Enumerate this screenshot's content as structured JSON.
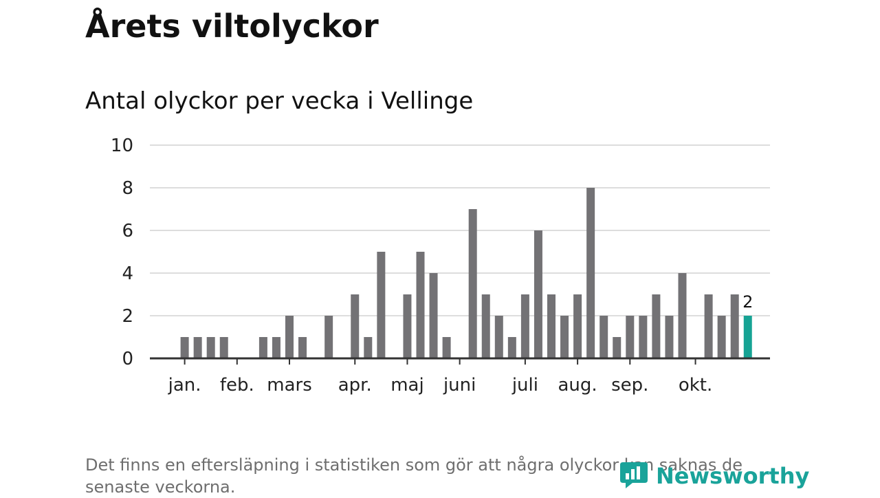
{
  "header": {
    "title": "Årets viltolyckor",
    "subtitle": "Antal olyckor per vecka i Vellinge"
  },
  "footer": {
    "note": "Det finns en eftersläpning i statistiken som gör att några olyckor kan saknas de senaste veckorna.",
    "brand": "Newsworthy",
    "brand_icon": "newsworthy-logo-icon"
  },
  "colors": {
    "bar": "#737275",
    "highlight": "#16a394",
    "grid": "#dddddd",
    "axis": "#333333"
  },
  "chart_data": {
    "type": "bar",
    "title": "Antal olyckor per vecka i Vellinge",
    "xlabel": "",
    "ylabel": "",
    "ylim": [
      0,
      10
    ],
    "yticks": [
      0,
      2,
      4,
      6,
      8,
      10
    ],
    "grid": true,
    "weeks": [
      1,
      2,
      3,
      4,
      5,
      6,
      7,
      8,
      9,
      10,
      11,
      12,
      13,
      14,
      15,
      16,
      17,
      18,
      19,
      20,
      21,
      22,
      23,
      24,
      25,
      26,
      27,
      28,
      29,
      30,
      31,
      32,
      33,
      34,
      35,
      36,
      37,
      38,
      39,
      40,
      41,
      42,
      43,
      44,
      45,
      46,
      47
    ],
    "values": [
      0,
      0,
      1,
      1,
      1,
      1,
      0,
      0,
      1,
      1,
      2,
      1,
      0,
      2,
      0,
      3,
      1,
      5,
      0,
      3,
      5,
      4,
      1,
      0,
      7,
      3,
      2,
      1,
      3,
      6,
      3,
      2,
      3,
      8,
      2,
      1,
      2,
      2,
      3,
      2,
      4,
      0,
      3,
      2,
      3,
      2,
      null
    ],
    "highlight_index": 45,
    "highlight_label": "2",
    "month_ticks": [
      {
        "label": "jan.",
        "week": 3
      },
      {
        "label": "feb.",
        "week": 7
      },
      {
        "label": "mars",
        "week": 11
      },
      {
        "label": "apr.",
        "week": 16
      },
      {
        "label": "maj",
        "week": 20
      },
      {
        "label": "juni",
        "week": 24
      },
      {
        "label": "juli",
        "week": 29
      },
      {
        "label": "aug.",
        "week": 33
      },
      {
        "label": "sep.",
        "week": 37
      },
      {
        "label": "okt.",
        "week": 42
      }
    ]
  }
}
